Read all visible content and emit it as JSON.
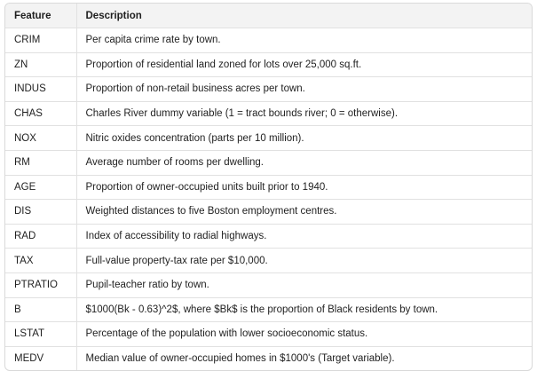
{
  "table": {
    "headers": [
      "Feature",
      "Description"
    ],
    "rows": [
      [
        "CRIM",
        "Per capita crime rate by town."
      ],
      [
        "ZN",
        "Proportion of residential land zoned for lots over 25,000 sq.ft."
      ],
      [
        "INDUS",
        "Proportion of non-retail business acres per town."
      ],
      [
        "CHAS",
        "Charles River dummy variable (1 = tract bounds river; 0 = otherwise)."
      ],
      [
        "NOX",
        "Nitric oxides concentration (parts per 10 million)."
      ],
      [
        "RM",
        "Average number of rooms per dwelling."
      ],
      [
        "AGE",
        "Proportion of owner-occupied units built prior to 1940."
      ],
      [
        "DIS",
        "Weighted distances to five Boston employment centres."
      ],
      [
        "RAD",
        "Index of accessibility to radial highways."
      ],
      [
        "TAX",
        "Full-value property-tax rate per $10,000."
      ],
      [
        "PTRATIO",
        "Pupil-teacher ratio by town."
      ],
      [
        "B",
        "$1000(Bk - 0.63)^2$, where $Bk$ is the proportion of Black residents by town."
      ],
      [
        "LSTAT",
        "Percentage of the population with lower socioeconomic status."
      ],
      [
        "MEDV",
        "Median value of owner-occupied homes in $1000's (Target variable)."
      ]
    ]
  }
}
